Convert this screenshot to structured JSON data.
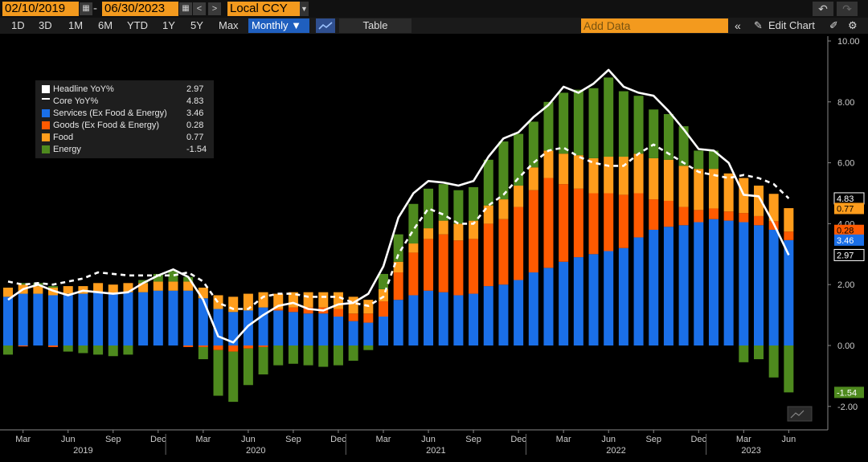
{
  "toolbar": {
    "start_date": "02/10/2019",
    "end_date": "06/30/2023",
    "date_separator": "-",
    "currency": "Local CCY",
    "periods": [
      "1D",
      "3D",
      "1M",
      "6M",
      "YTD",
      "1Y",
      "5Y",
      "Max"
    ],
    "frequency": "Monthly",
    "table_label": "Table",
    "add_data_placeholder": "Add Data",
    "edit_chart_label": "Edit Chart"
  },
  "chart_data": {
    "type": "bar",
    "stacked": true,
    "x": [
      "2019-02",
      "2019-03",
      "2019-04",
      "2019-05",
      "2019-06",
      "2019-07",
      "2019-08",
      "2019-09",
      "2019-10",
      "2019-11",
      "2019-12",
      "2020-01",
      "2020-02",
      "2020-03",
      "2020-04",
      "2020-05",
      "2020-06",
      "2020-07",
      "2020-08",
      "2020-09",
      "2020-10",
      "2020-11",
      "2020-12",
      "2021-01",
      "2021-02",
      "2021-03",
      "2021-04",
      "2021-05",
      "2021-06",
      "2021-07",
      "2021-08",
      "2021-09",
      "2021-10",
      "2021-11",
      "2021-12",
      "2022-01",
      "2022-02",
      "2022-03",
      "2022-04",
      "2022-05",
      "2022-06",
      "2022-07",
      "2022-08",
      "2022-09",
      "2022-10",
      "2022-11",
      "2022-12",
      "2023-01",
      "2023-02",
      "2023-03",
      "2023-04",
      "2023-05",
      "2023-06"
    ],
    "x_tick_labels": [
      "Mar",
      "Jun",
      "Sep",
      "Dec",
      "Mar",
      "Jun",
      "Sep",
      "Dec",
      "Mar",
      "Jun",
      "Sep",
      "Dec",
      "Mar",
      "Jun",
      "Sep",
      "Dec",
      "Mar",
      "Jun"
    ],
    "x_year_labels": [
      "2019",
      "2020",
      "2021",
      "2022",
      "2023"
    ],
    "ylim": [
      -2.0,
      10.0
    ],
    "y_ticks": [
      "10.00",
      "8.00",
      "6.00",
      "4.00",
      "2.00",
      "0.00",
      "-2.00"
    ],
    "legend_position": "top-left",
    "series": [
      {
        "name": "Services (Ex Food & Energy)",
        "last": "3.46",
        "color": "#1a6fe8",
        "kind": "bar",
        "values": [
          1.6,
          1.7,
          1.7,
          1.65,
          1.7,
          1.7,
          1.75,
          1.7,
          1.75,
          1.75,
          1.8,
          1.8,
          1.8,
          1.55,
          1.2,
          1.1,
          1.15,
          1.25,
          1.15,
          1.1,
          1.05,
          1.05,
          0.95,
          0.8,
          0.75,
          0.95,
          1.5,
          1.65,
          1.8,
          1.75,
          1.65,
          1.7,
          1.95,
          2.0,
          2.15,
          2.4,
          2.55,
          2.75,
          2.9,
          3.0,
          3.1,
          3.2,
          3.55,
          3.8,
          3.9,
          3.95,
          4.05,
          4.15,
          4.1,
          4.05,
          3.95,
          3.8,
          3.46
        ]
      },
      {
        "name": "Goods (Ex Food & Energy)",
        "last": "0.28",
        "color": "#ff5a00",
        "kind": "bar",
        "values": [
          0.0,
          -0.03,
          0.0,
          -0.05,
          0.0,
          0.0,
          0.0,
          0.0,
          0.0,
          0.0,
          0.0,
          0.0,
          -0.05,
          -0.05,
          -0.15,
          -0.2,
          -0.1,
          -0.05,
          0.05,
          0.15,
          0.2,
          0.2,
          0.25,
          0.25,
          0.3,
          0.5,
          0.9,
          1.4,
          1.7,
          1.9,
          1.8,
          1.8,
          2.05,
          2.15,
          2.4,
          2.7,
          2.95,
          2.55,
          2.25,
          2.0,
          1.9,
          1.75,
          1.45,
          1.0,
          0.85,
          0.6,
          0.4,
          0.35,
          0.3,
          0.3,
          0.3,
          0.28,
          0.28
        ]
      },
      {
        "name": "Food",
        "last": "0.77",
        "color": "#ff9d1c",
        "kind": "bar",
        "values": [
          0.3,
          0.3,
          0.25,
          0.25,
          0.25,
          0.25,
          0.3,
          0.3,
          0.3,
          0.3,
          0.3,
          0.3,
          0.3,
          0.35,
          0.45,
          0.5,
          0.55,
          0.5,
          0.5,
          0.5,
          0.5,
          0.5,
          0.55,
          0.55,
          0.45,
          0.4,
          0.35,
          0.3,
          0.35,
          0.45,
          0.55,
          0.6,
          0.6,
          0.65,
          0.7,
          0.75,
          0.9,
          1.0,
          1.1,
          1.15,
          1.2,
          1.25,
          1.3,
          1.35,
          1.35,
          1.35,
          1.35,
          1.3,
          1.25,
          1.15,
          1.0,
          0.9,
          0.77
        ]
      },
      {
        "name": "Energy",
        "last": "-1.54",
        "color": "#4e8a1e",
        "kind": "bar",
        "values": [
          -0.3,
          0.05,
          0.1,
          0.05,
          -0.2,
          -0.25,
          -0.3,
          -0.35,
          -0.3,
          0.1,
          0.25,
          0.35,
          0.15,
          -0.4,
          -1.5,
          -1.65,
          -1.2,
          -0.9,
          -0.65,
          -0.6,
          -0.65,
          -0.7,
          -0.65,
          -0.5,
          -0.15,
          0.5,
          0.9,
          1.3,
          1.3,
          1.2,
          1.1,
          1.1,
          1.5,
          1.9,
          1.7,
          1.5,
          1.6,
          2.0,
          2.15,
          2.3,
          2.6,
          2.15,
          1.9,
          1.6,
          1.5,
          1.3,
          0.6,
          0.6,
          0.0,
          -0.55,
          -0.45,
          -1.05,
          -1.54
        ]
      },
      {
        "name": "Headline YoY%",
        "last": "2.97",
        "color": "#ffffff",
        "kind": "line",
        "values": [
          1.5,
          1.85,
          2.0,
          1.8,
          1.65,
          1.8,
          1.75,
          1.7,
          1.75,
          2.05,
          2.3,
          2.5,
          2.25,
          1.5,
          0.3,
          0.1,
          0.65,
          1.0,
          1.3,
          1.4,
          1.2,
          1.15,
          1.35,
          1.4,
          1.7,
          2.6,
          4.2,
          5.0,
          5.4,
          5.35,
          5.25,
          5.4,
          6.2,
          6.8,
          7.0,
          7.5,
          7.9,
          8.5,
          8.3,
          8.6,
          9.05,
          8.5,
          8.3,
          8.2,
          7.7,
          7.1,
          6.45,
          6.4,
          6.0,
          4.95,
          4.9,
          4.0,
          2.97
        ]
      },
      {
        "name": "Core YoY%",
        "last": "4.83",
        "color": "#ffffff",
        "kind": "line-dashed",
        "values": [
          2.1,
          2.0,
          2.05,
          2.0,
          2.1,
          2.2,
          2.4,
          2.35,
          2.3,
          2.3,
          2.3,
          2.3,
          2.4,
          2.1,
          1.4,
          1.2,
          1.2,
          1.6,
          1.7,
          1.7,
          1.6,
          1.6,
          1.6,
          1.4,
          1.3,
          1.6,
          3.0,
          3.8,
          4.5,
          4.3,
          4.0,
          4.0,
          4.6,
          4.95,
          5.5,
          6.0,
          6.4,
          6.5,
          6.2,
          6.0,
          5.9,
          5.9,
          6.3,
          6.6,
          6.3,
          6.0,
          5.7,
          5.6,
          5.5,
          5.6,
          5.5,
          5.3,
          4.83
        ]
      }
    ]
  },
  "end_labels": {
    "core": "4.83",
    "food": "0.77",
    "goods": "0.28",
    "services": "3.46",
    "headline": "2.97",
    "energy": "-1.54"
  },
  "colors": {
    "accent": "#f39a1e",
    "selected": "#1f5fbf"
  }
}
